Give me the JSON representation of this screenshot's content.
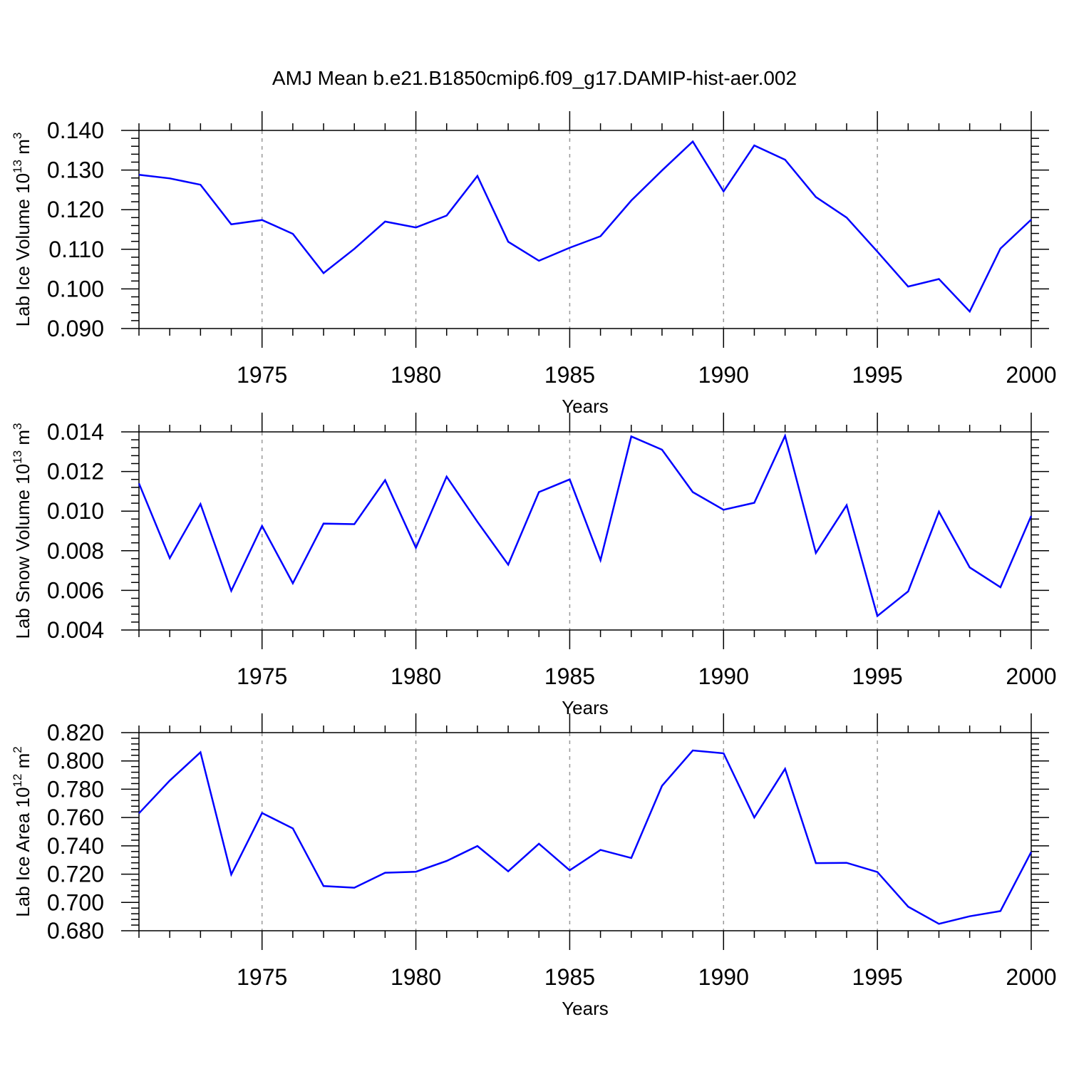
{
  "title": "AMJ Mean b.e21.B1850cmip6.f09_g17.DAMIP-hist-aer.002",
  "colors": {
    "line": "#0000ff",
    "axis": "#000000",
    "grid": "#999999"
  },
  "chart_data": [
    {
      "type": "line",
      "ylabel_main": "Lab Ice Volume 10",
      "ylabel_exp": "13",
      "ylabel_unit": " m",
      "ylabel_unit_exp": "3",
      "xlabel": "Years",
      "xlim": [
        1971,
        2000
      ],
      "ylim": [
        0.09,
        0.14
      ],
      "xticks": [
        "1975",
        "1980",
        "1985",
        "1990",
        "1995",
        "2000"
      ],
      "yticks": [
        "0.090",
        "0.100",
        "0.110",
        "0.120",
        "0.130",
        "0.140"
      ],
      "grid": "vertical dashed at major x ticks",
      "x": [
        1971,
        1972,
        1973,
        1974,
        1975,
        1976,
        1977,
        1978,
        1979,
        1980,
        1981,
        1982,
        1983,
        1984,
        1985,
        1986,
        1987,
        1988,
        1989,
        1990,
        1991,
        1992,
        1993,
        1994,
        1995,
        1996,
        1997,
        1998,
        1999,
        2000
      ],
      "y": [
        0.1288,
        0.1279,
        0.1263,
        0.1163,
        0.1174,
        0.1139,
        0.104,
        0.1101,
        0.117,
        0.1155,
        0.1185,
        0.1285,
        0.1119,
        0.1071,
        0.1104,
        0.1133,
        0.1223,
        0.1299,
        0.1372,
        0.1246,
        0.1362,
        0.1326,
        0.1232,
        0.118,
        0.1094,
        0.1006,
        0.1025,
        0.0943,
        0.1102,
        0.1175
      ]
    },
    {
      "type": "line",
      "ylabel_main": "Lab Snow Volume 10",
      "ylabel_exp": "13",
      "ylabel_unit": " m",
      "ylabel_unit_exp": "3",
      "xlabel": "Years",
      "xlim": [
        1971,
        2000
      ],
      "ylim": [
        0.004,
        0.014
      ],
      "xticks": [
        "1975",
        "1980",
        "1985",
        "1990",
        "1995",
        "2000"
      ],
      "yticks": [
        "0.004",
        "0.006",
        "0.008",
        "0.010",
        "0.012",
        "0.014"
      ],
      "grid": "vertical dashed at major x ticks",
      "x": [
        1971,
        1972,
        1973,
        1974,
        1975,
        1976,
        1977,
        1978,
        1979,
        1980,
        1981,
        1982,
        1983,
        1984,
        1985,
        1986,
        1987,
        1988,
        1989,
        1990,
        1991,
        1992,
        1993,
        1994,
        1995,
        1996,
        1997,
        1998,
        1999,
        2000
      ],
      "y": [
        0.0114,
        0.00763,
        0.01036,
        0.00598,
        0.00925,
        0.00636,
        0.00937,
        0.00934,
        0.01156,
        0.00815,
        0.01174,
        0.00946,
        0.0073,
        0.01096,
        0.0116,
        0.00752,
        0.01377,
        0.0131,
        0.01096,
        0.01007,
        0.01042,
        0.0138,
        0.00789,
        0.0103,
        0.00471,
        0.00595,
        0.00997,
        0.00716,
        0.00616,
        0.00976
      ]
    },
    {
      "type": "line",
      "ylabel_main": "Lab Ice Area 10",
      "ylabel_exp": "12",
      "ylabel_unit": " m",
      "ylabel_unit_exp": "2",
      "xlabel": "Years",
      "xlim": [
        1971,
        2000
      ],
      "ylim": [
        0.68,
        0.82
      ],
      "xticks": [
        "1975",
        "1980",
        "1985",
        "1990",
        "1995",
        "2000"
      ],
      "yticks": [
        "0.680",
        "0.700",
        "0.720",
        "0.740",
        "0.760",
        "0.780",
        "0.800",
        "0.820"
      ],
      "grid": "vertical dashed at major x ticks",
      "x": [
        1971,
        1972,
        1973,
        1974,
        1975,
        1976,
        1977,
        1978,
        1979,
        1980,
        1981,
        1982,
        1983,
        1984,
        1985,
        1986,
        1987,
        1988,
        1989,
        1990,
        1991,
        1992,
        1993,
        1994,
        1995,
        1996,
        1997,
        1998,
        1999,
        2000
      ],
      "y": [
        0.763,
        0.7861,
        0.8061,
        0.7198,
        0.7632,
        0.7523,
        0.7116,
        0.7104,
        0.721,
        0.7217,
        0.7293,
        0.7399,
        0.722,
        0.7415,
        0.7227,
        0.7371,
        0.7314,
        0.7824,
        0.8074,
        0.8054,
        0.76,
        0.7944,
        0.7278,
        0.728,
        0.7215,
        0.697,
        0.6849,
        0.6902,
        0.6939,
        0.7357
      ]
    }
  ]
}
